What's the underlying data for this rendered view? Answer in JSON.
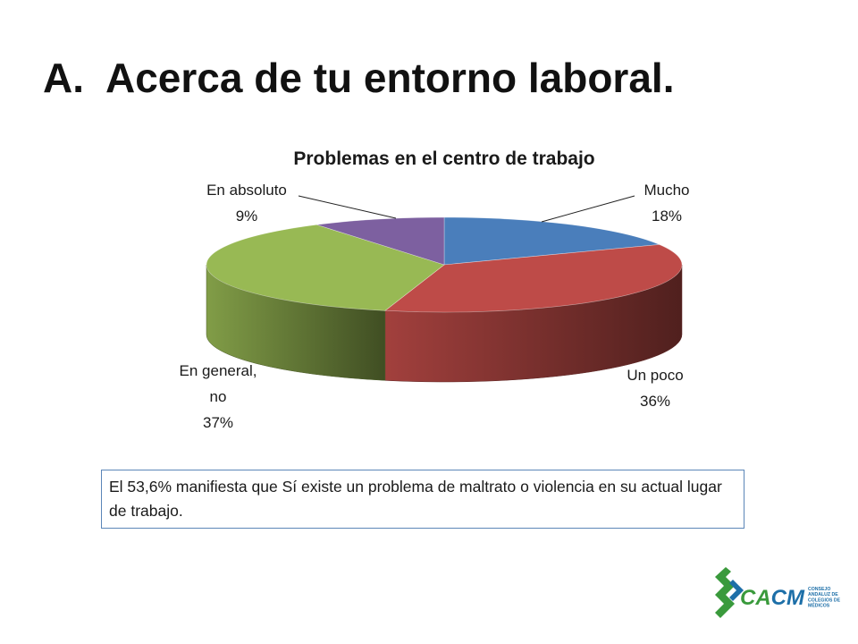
{
  "slide": {
    "number": "A.",
    "title": "Acerca de tu entorno laboral.",
    "note": "El 53,6%  manifiesta que Sí existe un problema de maltrato o violencia en su actual lugar de trabajo."
  },
  "chart_data": {
    "type": "pie",
    "title": "Problemas en el centro de trabajo",
    "slices": [
      {
        "label": "Mucho",
        "value": 18,
        "display": "18%",
        "color": "#4a7ebb"
      },
      {
        "label": "Un poco",
        "value": 36,
        "display": "36%",
        "color": "#be4b48"
      },
      {
        "label": "En general, no",
        "value": 37,
        "display": "37%",
        "color": "#98b954"
      },
      {
        "label": "En absoluto",
        "value": 9,
        "display": "9%",
        "color": "#7d60a0"
      }
    ]
  },
  "logo": {
    "text": "CACM",
    "subtext": [
      "CONSEJO",
      "ANDALUZ DE",
      "COLEGIOS DE",
      "MÉDICOS"
    ],
    "colors": {
      "green": "#3a9a3c",
      "blue": "#1d6fa8"
    }
  }
}
